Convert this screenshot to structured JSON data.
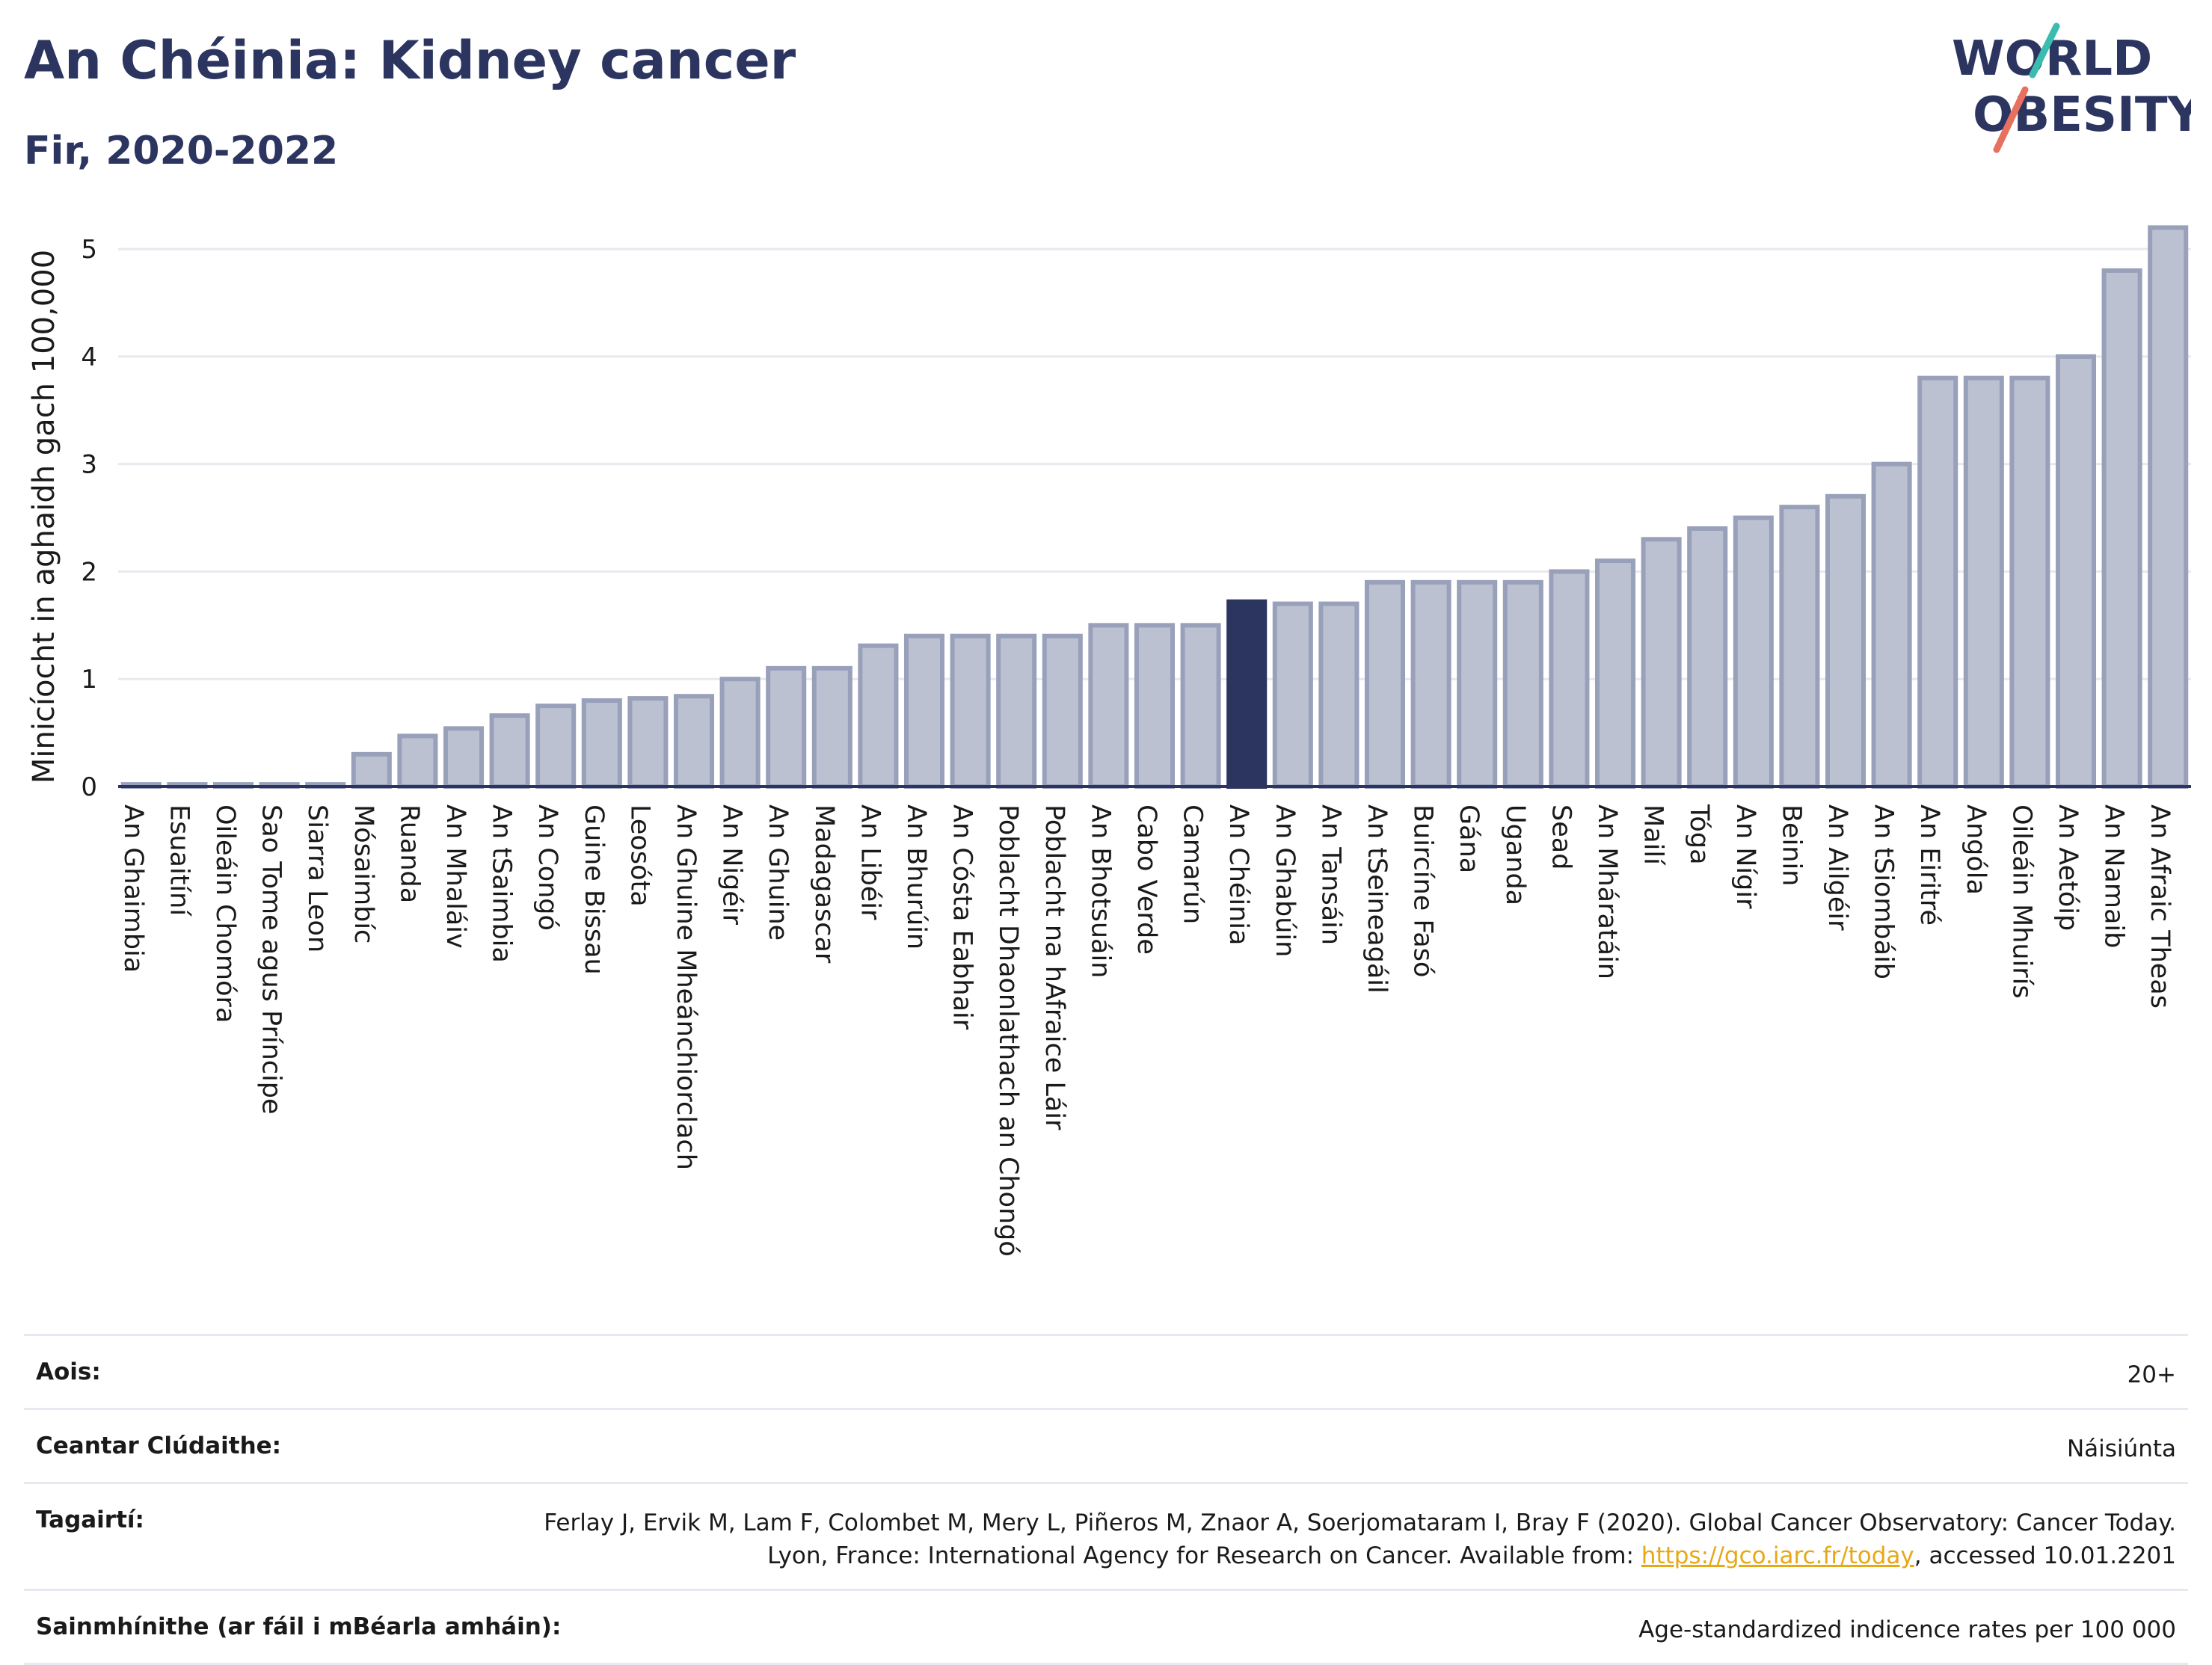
{
  "title": "An Chéinia: Kidney cancer",
  "subtitle": "Fir, 2020-2022",
  "logo": {
    "line1": "WORLD",
    "line2": "OBESITY"
  },
  "colors": {
    "bar": "#bcc1d2",
    "bar_edge": "#98a0ba",
    "highlight": "#2b3560",
    "axis": "#2b3560",
    "grid": "#e8e8ef",
    "slash_teal": "#3cbcb0",
    "slash_coral": "#e8705e"
  },
  "chart_data": {
    "type": "bar",
    "ylabel": "Minicíocht in aghaidh gach 100,000",
    "ylim": [
      0,
      5.3
    ],
    "yticks": [
      0,
      1,
      2,
      3,
      4,
      5
    ],
    "grid": true,
    "highlight": "An Chéinia",
    "categories": [
      "An Ghaimbia",
      "Esuaitíní",
      "Oileáin Chomóra",
      "Sao Tome agus Príncipe",
      "Siarra Leon",
      "Mósaimbíc",
      "Ruanda",
      "An Mhaláiv",
      "An tSaimbia",
      "An Congó",
      "Guine Bissau",
      "Leosóta",
      "An Ghuine Mheánchiorclach",
      "An Nigéir",
      "An Ghuine",
      "Madagascar",
      "An Libéir",
      "An Bhurúin",
      "An Cósta Eabhair",
      "Poblacht Dhaonlathach an Chongó",
      "Poblacht na hAfraice Láir",
      "An Bhotsuáin",
      "Cabo Verde",
      "Camarún",
      "An Chéinia",
      "An Ghabúin",
      "An Tansáin",
      "An tSeineagáil",
      "Buircíne Fasó",
      "Gána",
      "Uganda",
      "Sead",
      "An Mháratáin",
      "Mailí",
      "Tóga",
      "An Nígir",
      "Beinin",
      "An Ailgéir",
      "An tSiombáib",
      "An Eiritré",
      "Angóla",
      "Oileáin Mhuirís",
      "An Aetóip",
      "An Namaib",
      "An Afraic Theas"
    ],
    "values": [
      0.02,
      0.02,
      0.02,
      0.02,
      0.02,
      0.3,
      0.47,
      0.54,
      0.66,
      0.75,
      0.8,
      0.82,
      0.84,
      1.0,
      1.1,
      1.1,
      1.31,
      1.4,
      1.4,
      1.4,
      1.4,
      1.5,
      1.5,
      1.5,
      1.72,
      1.7,
      1.7,
      1.9,
      1.9,
      1.9,
      1.9,
      2.0,
      2.1,
      2.3,
      2.4,
      2.5,
      2.6,
      2.7,
      3.0,
      3.8,
      3.8,
      3.8,
      4.0,
      4.8,
      5.2
    ]
  },
  "meta": [
    {
      "label": "Aois:",
      "value": "20+"
    },
    {
      "label": "Ceantar Clúdaithe:",
      "value": "Náisiúnta"
    },
    {
      "label": "Tagairtí:",
      "value_before": "Ferlay J, Ervik M, Lam F, Colombet M, Mery L, Piñeros M, Znaor A, Soerjomataram I, Bray F (2020). Global Cancer Observatory: Cancer Today. Lyon, France: International Agency for Research on Cancer. Available from: ",
      "link": "https://gco.iarc.fr/today",
      "value_after": ", accessed 10.01.2201"
    },
    {
      "label": "Sainmhínithe (ar fáil i mBéarla amháin):",
      "value": "Age-standardized indicence rates per 100 000"
    }
  ]
}
